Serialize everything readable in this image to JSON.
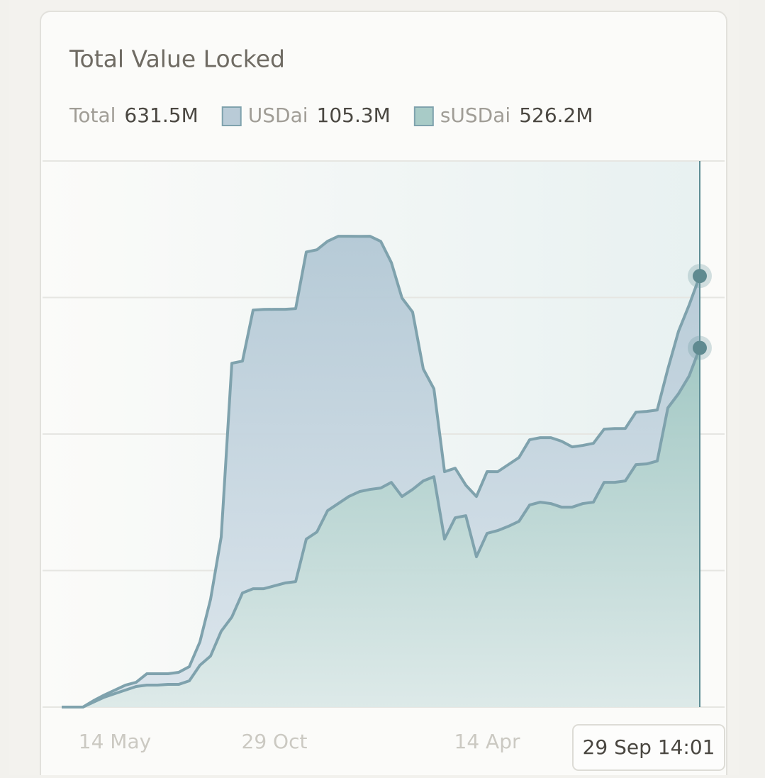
{
  "chart_data": {
    "type": "stacked-area",
    "title": "Total Value Locked",
    "total_label": "Total",
    "total": "631.5M",
    "categories": [
      null,
      null,
      null,
      null,
      null,
      "14 May",
      null,
      null,
      null,
      null,
      null,
      null,
      null,
      null,
      null,
      null,
      null,
      null,
      null,
      null,
      "29 Oct",
      null,
      null,
      null,
      null,
      null,
      null,
      null,
      null,
      null,
      null,
      null,
      null,
      null,
      null,
      null,
      null,
      null,
      null,
      null,
      "14 Apr",
      null,
      null,
      null,
      null,
      null,
      null,
      null,
      null,
      null,
      null,
      null,
      null,
      null,
      null,
      null,
      null,
      null,
      null,
      null,
      "29 Sep 14:01"
    ],
    "series": [
      {
        "name": "USDai",
        "color": "#b9cbd7",
        "line_color": "#7fa2ad",
        "current": "105.3M",
        "values": [
          0,
          0,
          0,
          2.1,
          3.1,
          5.2,
          7.3,
          6.2,
          16.6,
          16.6,
          15.6,
          17.7,
          20.8,
          34.3,
          83.1,
          138.1,
          371.8,
          339.6,
          408.2,
          409.2,
          405.1,
          400.9,
          399.9,
          420.6,
          413.4,
          394.7,
          391.6,
          381.2,
          373.9,
          370.8,
          361.4,
          322,
          290.8,
          259.7,
          164.1,
          128.8,
          98.7,
          72.7,
          44.7,
          88.3,
          90.4,
          86.2,
          90.4,
          93.5,
          95.6,
          94.5,
          96.6,
          96.6,
          88.3,
          85.2,
          86.2,
          77.9,
          78.9,
          76.9,
          76.9,
          76.9,
          74.8,
          57.1,
          91.4,
          103.9,
          105.3
        ]
      },
      {
        "name": "sUSDai",
        "color": "#a8cbc7",
        "line_color": "#7fa2ad",
        "current": "526.2M",
        "values": [
          0,
          0,
          0,
          7.3,
          14.5,
          19.7,
          24.9,
          30.1,
          32.2,
          32.2,
          33.2,
          33.2,
          38.4,
          61.3,
          74.8,
          111.1,
          131.9,
          167.2,
          173.4,
          173.4,
          177.6,
          181.8,
          183.8,
          246.1,
          256.5,
          287.7,
          298.1,
          308.5,
          315.7,
          318.9,
          320.9,
          329.2,
          308.5,
          318.9,
          331.3,
          337.5,
          246.1,
          277.3,
          280.4,
          220.2,
          254.5,
          258.6,
          264.8,
          272.1,
          296,
          300.2,
          298.1,
          292.9,
          292.9,
          298.1,
          300.2,
          329.2,
          329.2,
          331.3,
          355.2,
          356.2,
          360.4,
          438.3,
          459.1,
          485,
          526.2
        ]
      }
    ],
    "ylim": [
      0,
      800
    ],
    "yticks": [
      0,
      200,
      400,
      600,
      800
    ],
    "grid": true
  }
}
